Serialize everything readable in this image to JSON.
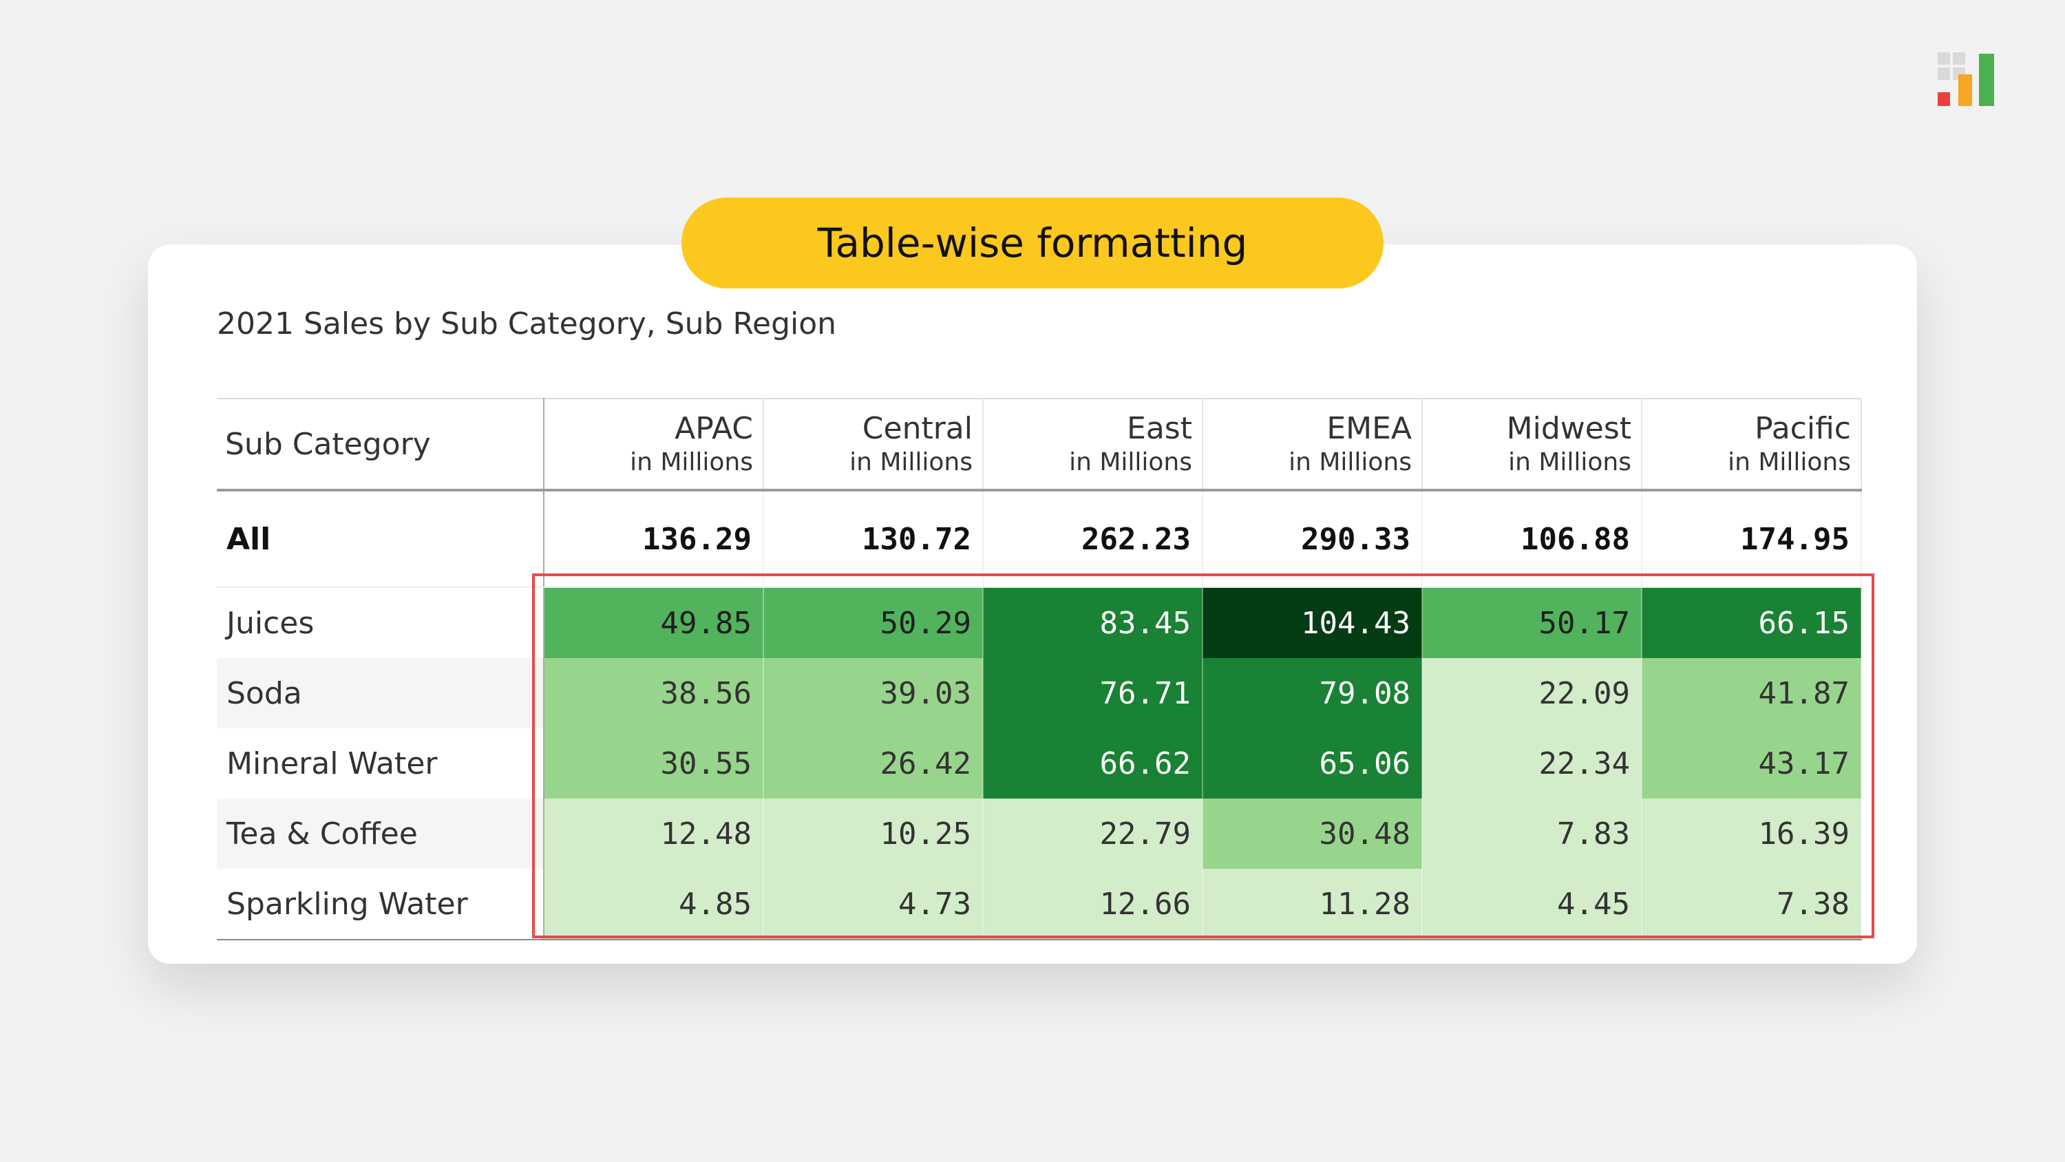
{
  "badge": {
    "label": "Table-wise formatting"
  },
  "chart_data": {
    "type": "table",
    "title": "2021 Sales by Sub Category, Sub Region",
    "row_header": "Sub Category",
    "unit_label": "in Millions",
    "columns": [
      "APAC",
      "Central",
      "East",
      "EMEA",
      "Midwest",
      "Pacific"
    ],
    "total_row": {
      "label": "All",
      "values": [
        "136.29",
        "130.72",
        "262.23",
        "290.33",
        "106.88",
        "174.95"
      ]
    },
    "rows": [
      {
        "label": "Juices",
        "values": [
          "49.85",
          "50.29",
          "83.45",
          "104.43",
          "50.17",
          "66.15"
        ]
      },
      {
        "label": "Soda",
        "values": [
          "38.56",
          "39.03",
          "76.71",
          "79.08",
          "22.09",
          "41.87"
        ]
      },
      {
        "label": "Mineral Water",
        "values": [
          "30.55",
          "26.42",
          "66.62",
          "65.06",
          "22.34",
          "43.17"
        ]
      },
      {
        "label": "Tea & Coffee",
        "values": [
          "12.48",
          "10.25",
          "22.79",
          "30.48",
          "7.83",
          "16.39"
        ]
      },
      {
        "label": "Sparkling Water",
        "values": [
          "4.85",
          "4.73",
          "12.66",
          "11.28",
          "4.45",
          "7.38"
        ]
      }
    ],
    "color_scale": {
      "basis": "whole table",
      "bins": [
        {
          "max": 25,
          "background": "#d3ecca",
          "text": "#333333"
        },
        {
          "max": 45,
          "background": "#98d58c",
          "text": "#333333"
        },
        {
          "max": 65,
          "background": "#52b35d",
          "text": "#1f1f1f"
        },
        {
          "max": 100,
          "background": "#198234",
          "text": "#ffffff"
        },
        {
          "max": 1000,
          "background": "#043c13",
          "text": "#ffffff"
        }
      ]
    }
  },
  "highlight_color": "#e8494b",
  "logo": {
    "name": "app-logo",
    "colors": [
      "#d9d9d9",
      "#e8413c",
      "#f5a623",
      "#4caf50"
    ]
  }
}
